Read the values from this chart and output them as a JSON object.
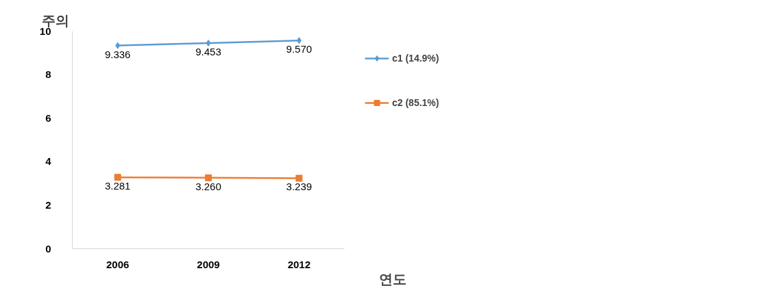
{
  "chart_data": {
    "type": "line",
    "xlabel": "연도",
    "ylabel": "주의",
    "categories": [
      "2006",
      "2009",
      "2012"
    ],
    "series": [
      {
        "name": "c1 (14.9%)",
        "color": "#5b9bd5",
        "marker": "diamond",
        "values": [
          9.336,
          9.453,
          9.57
        ],
        "value_labels": [
          "9.336",
          "9.453",
          "9.570"
        ]
      },
      {
        "name": "c2 (85.1%)",
        "color": "#ed7d31",
        "marker": "square",
        "values": [
          3.281,
          3.26,
          3.239
        ],
        "value_labels": [
          "3.281",
          "3.260",
          "3.239"
        ]
      }
    ],
    "ylim": [
      0,
      10
    ],
    "yticks": [
      0,
      2,
      4,
      6,
      8,
      10
    ],
    "grid": false,
    "legend": "top right"
  }
}
